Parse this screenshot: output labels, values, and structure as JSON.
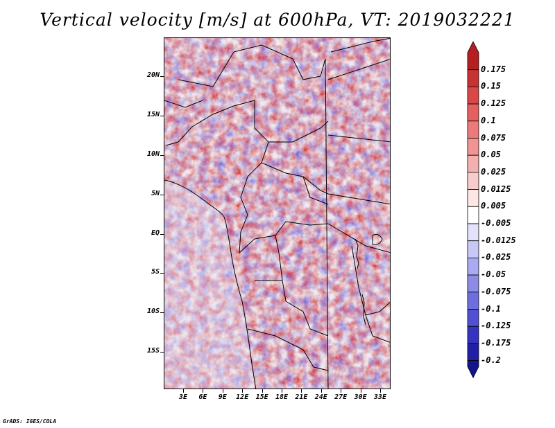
{
  "title": "Vertical velocity [m/s] at 600hPa, VT: 2019032221",
  "footer": "GrADS: IGES/COLA",
  "map": {
    "lat_labels": [
      "20N",
      "15N",
      "10N",
      "5N",
      "EQ",
      "5S",
      "10S",
      "15S"
    ],
    "lon_labels": [
      "3E",
      "6E",
      "9E",
      "12E",
      "15E",
      "18E",
      "21E",
      "24E",
      "27E",
      "30E",
      "33E"
    ]
  },
  "colorbar": {
    "labels": [
      "0.175",
      "0.15",
      "0.125",
      "0.1",
      "0.075",
      "0.05",
      "0.025",
      "0.0125",
      "0.005",
      "-0.005",
      "-0.0125",
      "-0.025",
      "-0.05",
      "-0.075",
      "-0.1",
      "-0.125",
      "-0.175",
      "-0.2"
    ],
    "colors": [
      "#b42020",
      "#c83232",
      "#d84848",
      "#e46060",
      "#ec7a7a",
      "#f09494",
      "#f4b0b0",
      "#f8cccc",
      "#fce6e6",
      "#ffffff",
      "#e2e2fb",
      "#c8c8f6",
      "#aaaaf0",
      "#8c8ce6",
      "#6e6ede",
      "#5050d0",
      "#3434be",
      "#2020a6",
      "#14148c"
    ]
  }
}
